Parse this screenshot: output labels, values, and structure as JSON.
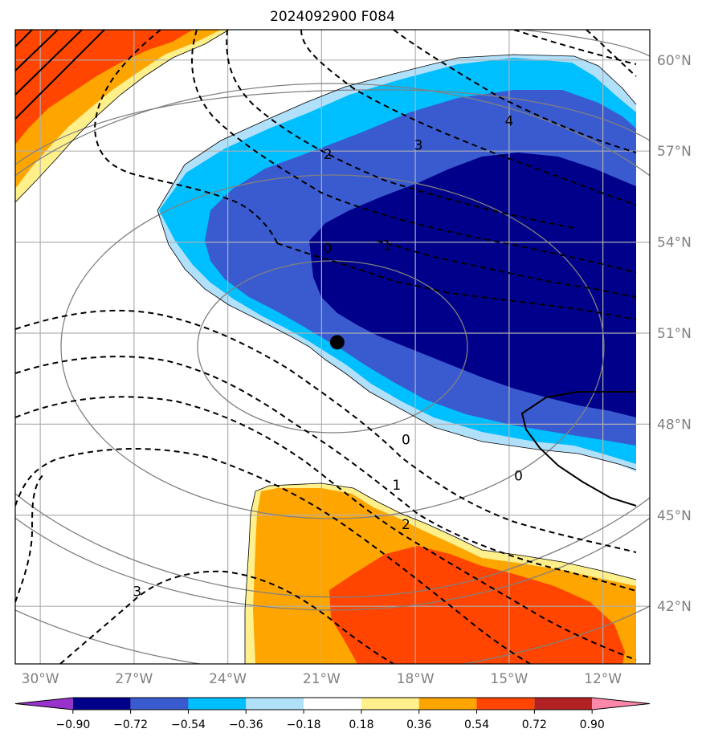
{
  "chart_data": {
    "type": "contour-map",
    "title": "2024092900 F084",
    "projection": "lat-lon map with dashed/solid black contour lines, grey concentric rings, shaded anomaly field",
    "extent": {
      "lon": [
        -30.8,
        -10.5
      ],
      "lat": [
        40.1,
        61.0
      ]
    },
    "grid": true,
    "x_ticks": [
      -30,
      -27,
      -24,
      -21,
      -18,
      -15,
      -12
    ],
    "x_tick_labels": [
      "30°W",
      "27°W",
      "24°W",
      "21°W",
      "18°W",
      "15°W",
      "12°W"
    ],
    "y_ticks": [
      42,
      45,
      48,
      51,
      54,
      57,
      60
    ],
    "y_tick_labels": [
      "42°N",
      "45°N",
      "48°N",
      "51°N",
      "54°N",
      "57°N",
      "60°N"
    ],
    "colorbar": {
      "levels": [
        -0.9,
        -0.72,
        -0.54,
        -0.36,
        -0.18,
        0.18,
        0.36,
        0.54,
        0.72,
        0.9
      ],
      "tick_labels": [
        "−0.90",
        "−0.72",
        "−0.54",
        "−0.36",
        "−0.18",
        "0.18",
        "0.36",
        "0.54",
        "0.72",
        "0.90"
      ],
      "colors": [
        "#9932cc",
        "#00008b",
        "#3a5bd0",
        "#00bfff",
        "#b0e0fa",
        "#ffffff",
        "#fff08c",
        "#ffa500",
        "#ff4500",
        "#b22222",
        "#ff88aa"
      ],
      "extend": "both"
    },
    "contour_labels": [
      {
        "text": "0",
        "lon": -20.8,
        "lat": 53.8
      },
      {
        "text": "1",
        "lon": -18.9,
        "lat": 53.9
      },
      {
        "text": "2",
        "lon": -20.8,
        "lat": 56.9
      },
      {
        "text": "3",
        "lon": -17.9,
        "lat": 57.2
      },
      {
        "text": "4",
        "lon": -15.0,
        "lat": 58.0
      },
      {
        "text": "0",
        "lon": -18.3,
        "lat": 47.5
      },
      {
        "text": "1",
        "lon": -18.6,
        "lat": 46.0
      },
      {
        "text": "2",
        "lon": -18.3,
        "lat": 44.7
      },
      {
        "text": "3",
        "lon": -26.9,
        "lat": 42.5
      },
      {
        "text": "0",
        "lon": -14.7,
        "lat": 46.3
      }
    ],
    "marker": {
      "lon": -20.5,
      "lat": 50.7
    }
  }
}
